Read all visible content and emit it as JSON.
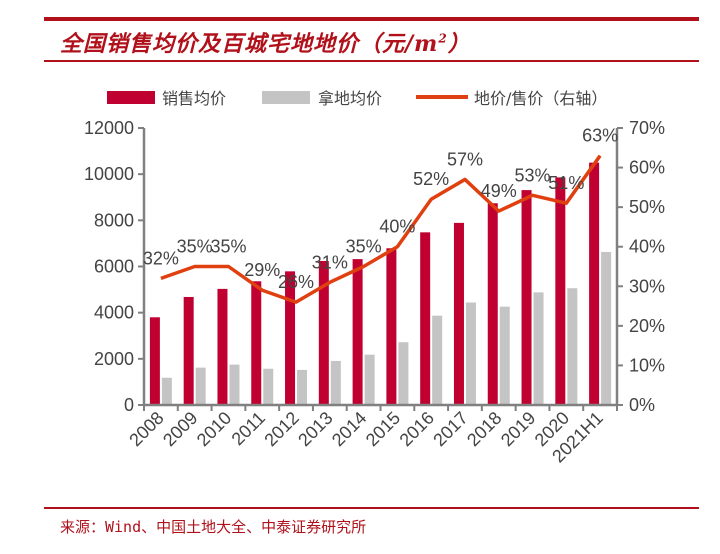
{
  "header": {
    "title": "全国销售均价及百城宅地地价（元/m",
    "title_sup": "2",
    "title_tail": "）"
  },
  "footer": {
    "source": "来源：Wind、中国土地大全、中泰证券研究所"
  },
  "colors": {
    "sales_bar": "#c00030",
    "land_bar": "#c4c4c4",
    "ratio_line": "#e04010",
    "axis": "#808080",
    "accent": "#b0111b"
  },
  "chart_data": {
    "type": "bar",
    "title": "全国销售均价及百城宅地地价（元/m²）",
    "xlabel": "",
    "ylabel": "",
    "categories": [
      "2008",
      "2009",
      "2010",
      "2011",
      "2012",
      "2013",
      "2014",
      "2015",
      "2016",
      "2017",
      "2018",
      "2019",
      "2020",
      "2021H1"
    ],
    "series": [
      {
        "name": "销售均价",
        "type": "bar",
        "axis": "left",
        "values": [
          3800,
          4680,
          5030,
          5360,
          5790,
          6240,
          6320,
          6790,
          7480,
          7890,
          8740,
          9310,
          9860,
          10500
        ]
      },
      {
        "name": "拿地均价",
        "type": "bar",
        "axis": "left",
        "values": [
          1180,
          1620,
          1750,
          1570,
          1520,
          1910,
          2180,
          2720,
          3870,
          4440,
          4260,
          4880,
          5060,
          6630
        ]
      },
      {
        "name": "地价/售价（右轴）",
        "type": "line",
        "axis": "right",
        "values": [
          32,
          35,
          35,
          29,
          26,
          31,
          35,
          40,
          52,
          57,
          49,
          53,
          51,
          63
        ],
        "labels": [
          "32%",
          "35%",
          "35%",
          "29%",
          "26%",
          "31%",
          "35%",
          "40%",
          "52%",
          "57%",
          "49%",
          "53%",
          "51%",
          "63%"
        ]
      }
    ],
    "ylim": [
      0,
      12000
    ],
    "y_ticks": [
      "0",
      "2000",
      "4000",
      "6000",
      "8000",
      "10000",
      "12000"
    ],
    "y_tick_values": [
      0,
      2000,
      4000,
      6000,
      8000,
      10000,
      12000
    ],
    "y2lim": [
      0,
      70
    ],
    "y2_ticks": [
      "0%",
      "10%",
      "20%",
      "30%",
      "40%",
      "50%",
      "60%",
      "70%"
    ],
    "y2_tick_values": [
      0,
      10,
      20,
      30,
      40,
      50,
      60,
      70
    ],
    "legend": [
      "销售均价",
      "拿地均价",
      "地价/售价（右轴）"
    ],
    "legend_position": "top",
    "grid": false
  }
}
